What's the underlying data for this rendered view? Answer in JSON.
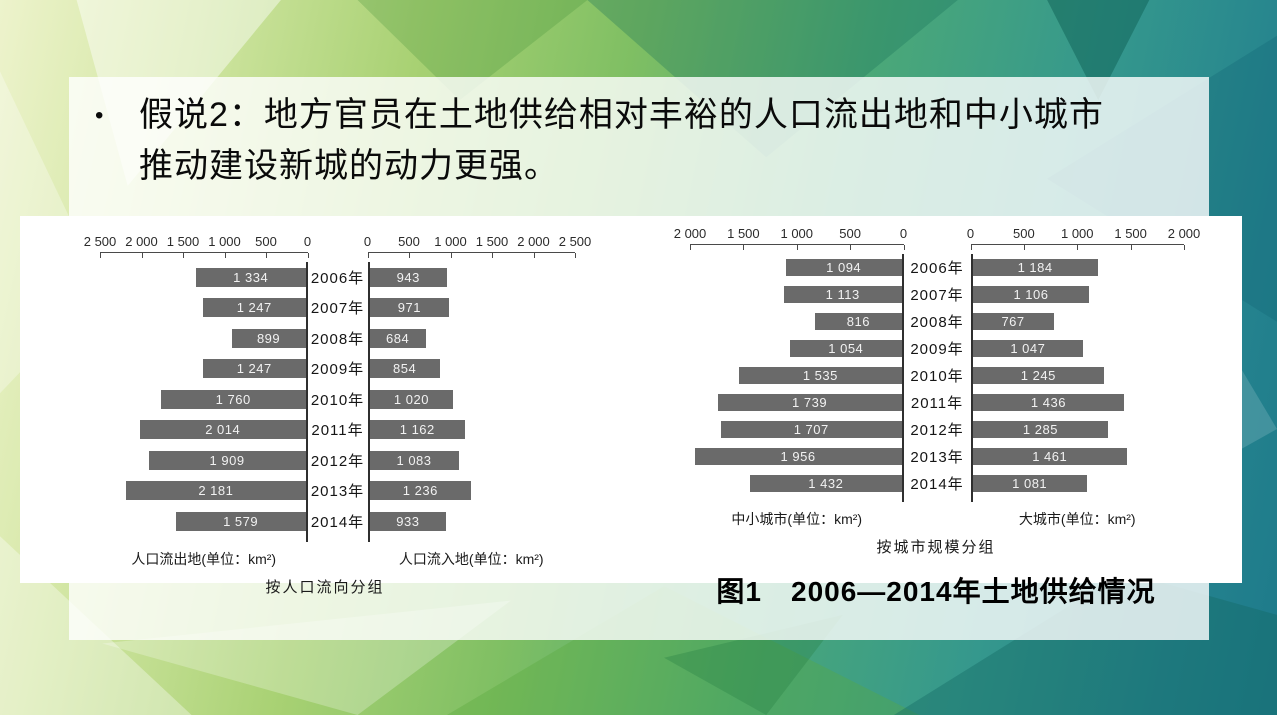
{
  "slide": {
    "bullet": {
      "marker": "•",
      "lines": [
        "假说2：地方官员在土地供给相对丰裕的人口流出地和中小城市",
        "推动建设新城的动力更强。"
      ]
    },
    "figure_caption": "图1　2006—2014年土地供给情况"
  },
  "chart_data": [
    {
      "type": "bar",
      "subtype": "bilateral-pyramid",
      "title": "按人口流向分组",
      "categories": [
        "2006年",
        "2007年",
        "2008年",
        "2009年",
        "2010年",
        "2011年",
        "2012年",
        "2013年",
        "2014年"
      ],
      "axis": {
        "max": 2500,
        "step": 500,
        "tick_values": [
          0,
          500,
          1000,
          1500,
          2000,
          2500
        ]
      },
      "series": [
        {
          "name": "人口流出地(单位：km²)",
          "side": "left",
          "values": [
            1334,
            1247,
            899,
            1247,
            1760,
            2014,
            1909,
            2181,
            1579
          ]
        },
        {
          "name": "人口流入地(单位：km²)",
          "side": "right",
          "values": [
            943,
            971,
            684,
            854,
            1020,
            1162,
            1083,
            1236,
            933
          ]
        }
      ],
      "bar_color": "#6a6a6a",
      "value_label_color": "#f2f2f2",
      "legend_position": "bottom",
      "grid": false
    },
    {
      "type": "bar",
      "subtype": "bilateral-pyramid",
      "title": "按城市规模分组",
      "categories": [
        "2006年",
        "2007年",
        "2008年",
        "2009年",
        "2010年",
        "2011年",
        "2012年",
        "2013年",
        "2014年"
      ],
      "axis": {
        "max": 2000,
        "step": 500,
        "tick_values": [
          0,
          500,
          1000,
          1500,
          2000
        ]
      },
      "series": [
        {
          "name": "中小城市(单位：km²)",
          "side": "left",
          "values": [
            1094,
            1113,
            816,
            1054,
            1535,
            1739,
            1707,
            1956,
            1432
          ]
        },
        {
          "name": "大城市(单位：km²)",
          "side": "right",
          "values": [
            1184,
            1106,
            767,
            1047,
            1245,
            1436,
            1285,
            1461,
            1081
          ]
        }
      ],
      "bar_color": "#6a6a6a",
      "value_label_color": "#f2f2f2",
      "legend_position": "bottom",
      "grid": false
    }
  ]
}
